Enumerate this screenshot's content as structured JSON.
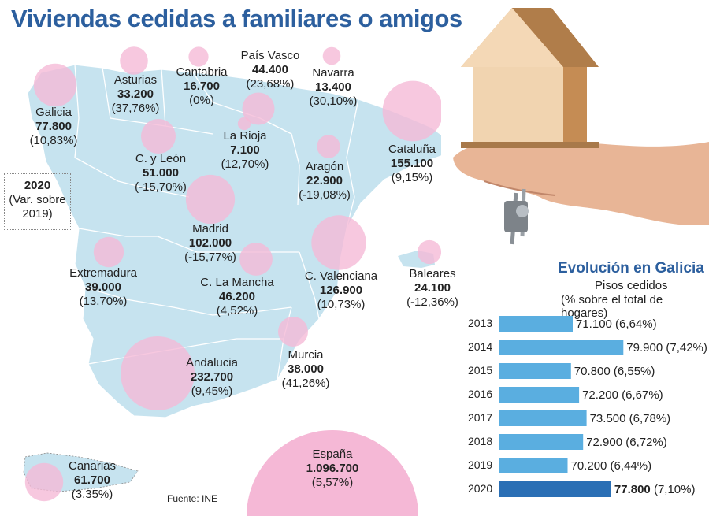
{
  "title": "Viviendas cedidas a familiares o amigos",
  "legend": {
    "line1": "2020",
    "line2": "(Var. sobre",
    "line3": "2019)"
  },
  "source": "Fuente: INE",
  "regions": [
    {
      "id": "galicia",
      "name": "Galicia",
      "value": "77.800",
      "pct": "(10,83%)"
    },
    {
      "id": "asturias",
      "name": "Asturias",
      "value": "33.200",
      "pct": "(37,76%)"
    },
    {
      "id": "cantabria",
      "name": "Cantabria",
      "value": "16.700",
      "pct": "(0%)"
    },
    {
      "id": "pais-vasco",
      "name": "País Vasco",
      "value": "44.400",
      "pct": "(23,68%)"
    },
    {
      "id": "navarra",
      "name": "Navarra",
      "value": "13.400",
      "pct": "(30,10%)"
    },
    {
      "id": "la-rioja",
      "name": "La Rioja",
      "value": "7.100",
      "pct": "(12,70%)"
    },
    {
      "id": "cyleon",
      "name": "C. y León",
      "value": "51.000",
      "pct": "(-15,70%)"
    },
    {
      "id": "aragon",
      "name": "Aragón",
      "value": "22.900",
      "pct": "(-19,08%)"
    },
    {
      "id": "cataluna",
      "name": "Cataluña",
      "value": "155.100",
      "pct": "(9,15%)"
    },
    {
      "id": "madrid",
      "name": "Madrid",
      "value": "102.000",
      "pct": "(-15,77%)"
    },
    {
      "id": "extremadura",
      "name": "Extremadura",
      "value": "39.000",
      "pct": "(13,70%)"
    },
    {
      "id": "clamancha",
      "name": "C. La Mancha",
      "value": "46.200",
      "pct": "(4,52%)"
    },
    {
      "id": "cvalenciana",
      "name": "C. Valenciana",
      "value": "126.900",
      "pct": "(10,73%)"
    },
    {
      "id": "baleares",
      "name": "Baleares",
      "value": "24.100",
      "pct": "(-12,36%)"
    },
    {
      "id": "murcia",
      "name": "Murcia",
      "value": "38.000",
      "pct": "(41,26%)"
    },
    {
      "id": "andalucia",
      "name": "Andalucia",
      "value": "232.700",
      "pct": "(9,45%)"
    },
    {
      "id": "canarias",
      "name": "Canarias",
      "value": "61.700",
      "pct": "(3,35%)"
    },
    {
      "id": "espana",
      "name": "España",
      "value": "1.096.700",
      "pct": "(5,57%)"
    }
  ],
  "evolution": {
    "title": "Evolución en Galicia",
    "subtitle1": "Pisos cedidos",
    "subtitle2": "(% sobre el total de hogares)"
  },
  "colors": {
    "map": "#c6e3ef",
    "bubble": "#f5b8d6",
    "bar": "#5aaee0",
    "bar_highlight": "#2a6fb5",
    "title": "#2c5f9e"
  },
  "chart_data": [
    {
      "type": "scatter",
      "title": "Viviendas cedidas a familiares o amigos",
      "note": "2020 (Var. sobre 2019)",
      "series": [
        {
          "name": "Viviendas cedidas",
          "categories": [
            "Galicia",
            "Asturias",
            "Cantabria",
            "País Vasco",
            "Navarra",
            "La Rioja",
            "C. y León",
            "Aragón",
            "Cataluña",
            "Madrid",
            "Extremadura",
            "C. La Mancha",
            "C. Valenciana",
            "Baleares",
            "Murcia",
            "Andalucia",
            "Canarias",
            "España"
          ],
          "values": [
            77800,
            33200,
            16700,
            44400,
            13400,
            7100,
            51000,
            22900,
            155100,
            102000,
            39000,
            46200,
            126900,
            24100,
            38000,
            232700,
            61700,
            1096700
          ],
          "change_pct": [
            10.83,
            37.76,
            0,
            23.68,
            30.1,
            12.7,
            -15.7,
            -19.08,
            9.15,
            -15.77,
            13.7,
            4.52,
            10.73,
            -12.36,
            41.26,
            9.45,
            3.35,
            5.57
          ]
        }
      ]
    },
    {
      "type": "bar",
      "title": "Evolución en Galicia",
      "subtitle": "Pisos cedidos (% sobre el total de hogares)",
      "categories": [
        "2013",
        "2014",
        "2015",
        "2016",
        "2017",
        "2018",
        "2019",
        "2020"
      ],
      "values": [
        71100,
        79900,
        70800,
        72200,
        73500,
        72900,
        70200,
        77800
      ],
      "value_labels": [
        "71.100",
        "79.900",
        "70.800",
        "72.200",
        "73.500",
        "72.900",
        "70.200",
        "77.800"
      ],
      "pct_labels": [
        "(6,64%)",
        "(7,42%)",
        "(6,55%)",
        "(6,67%)",
        "(6,78%)",
        "(6,72%)",
        "(6,44%)",
        "(7,10%)"
      ],
      "highlight": "2020"
    }
  ]
}
